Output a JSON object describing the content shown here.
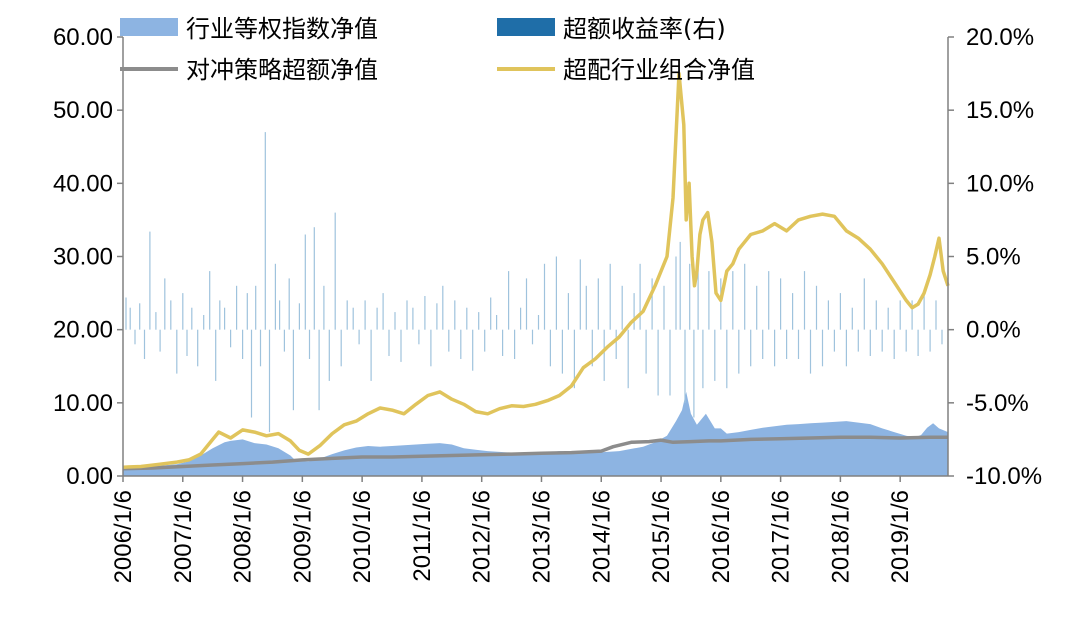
{
  "chart_data": {
    "type": "line",
    "title": "",
    "xlabel": "",
    "ylabel": "",
    "y_left": {
      "range": [
        0,
        60
      ],
      "ticks": [
        0,
        10,
        20,
        30,
        40,
        50,
        60
      ],
      "tick_labels": [
        "0.00",
        "10.00",
        "20.00",
        "30.00",
        "40.00",
        "50.00",
        "60.00"
      ]
    },
    "y_right": {
      "range": [
        -10,
        20
      ],
      "ticks": [
        -10,
        -5,
        0,
        5,
        10,
        15,
        20
      ],
      "tick_labels": [
        "-10.0%",
        "-5.0%",
        "0.0%",
        "5.0%",
        "10.0%",
        "15.0%",
        "20.0%"
      ]
    },
    "x_range": [
      2006.0,
      2019.8
    ],
    "x_ticks": [
      2006,
      2007,
      2008,
      2009,
      2010,
      2011,
      2012,
      2013,
      2014,
      2015,
      2016,
      2017,
      2018,
      2019
    ],
    "x_tick_labels": [
      "2006/1/6",
      "2007/1/6",
      "2008/1/6",
      "2009/1/6",
      "2010/1/6",
      "2011/1/6",
      "2012/1/6",
      "2013/1/6",
      "2014/1/6",
      "2015/1/6",
      "2016/1/6",
      "2017/1/6",
      "2018/1/6",
      "2019/1/6"
    ],
    "grid": false,
    "legend_position": "top",
    "series": [
      {
        "name": "行业等权指数净值",
        "type": "area",
        "axis": "left",
        "color": "#8db4e2",
        "x": [
          2006.0,
          2006.3,
          2006.6,
          2006.9,
          2007.1,
          2007.3,
          2007.5,
          2007.7,
          2007.8,
          2008.0,
          2008.2,
          2008.4,
          2008.6,
          2008.8,
          2008.9,
          2009.1,
          2009.3,
          2009.5,
          2009.7,
          2009.9,
          2010.1,
          2010.3,
          2010.5,
          2010.7,
          2010.9,
          2011.1,
          2011.3,
          2011.5,
          2011.7,
          2011.9,
          2012.1,
          2012.3,
          2012.5,
          2012.7,
          2012.9,
          2013.1,
          2013.3,
          2013.5,
          2013.7,
          2013.9,
          2014.1,
          2014.3,
          2014.5,
          2014.7,
          2014.9,
          2015.1,
          2015.25,
          2015.35,
          2015.42,
          2015.5,
          2015.6,
          2015.75,
          2015.9,
          2016.0,
          2016.1,
          2016.3,
          2016.5,
          2016.7,
          2016.9,
          2017.1,
          2017.3,
          2017.5,
          2017.7,
          2017.9,
          2018.1,
          2018.3,
          2018.5,
          2018.7,
          2018.9,
          2019.1,
          2019.25,
          2019.35,
          2019.45,
          2019.55,
          2019.65,
          2019.8
        ],
        "values": [
          1.0,
          1.2,
          1.4,
          1.6,
          2.0,
          2.8,
          3.8,
          4.6,
          4.8,
          5.0,
          4.5,
          4.3,
          3.8,
          2.8,
          2.0,
          2.0,
          2.4,
          3.0,
          3.5,
          3.9,
          4.1,
          4.0,
          4.1,
          4.2,
          4.3,
          4.4,
          4.5,
          4.3,
          3.8,
          3.6,
          3.4,
          3.3,
          3.2,
          3.1,
          3.0,
          3.2,
          3.4,
          3.3,
          3.1,
          3.2,
          3.3,
          3.4,
          3.7,
          4.0,
          4.6,
          5.5,
          7.5,
          9.0,
          11.5,
          8.5,
          7.0,
          8.5,
          6.5,
          6.5,
          5.8,
          6.0,
          6.3,
          6.6,
          6.8,
          7.0,
          7.1,
          7.2,
          7.3,
          7.4,
          7.5,
          7.3,
          7.1,
          6.5,
          6.0,
          5.5,
          5.3,
          5.6,
          6.6,
          7.2,
          6.5,
          6.0
        ]
      },
      {
        "name": "超额收益率(右)",
        "type": "bar",
        "axis": "right",
        "color": "#1f6ea8",
        "bar_color": "#9fc3dd",
        "x": [
          2006.05,
          2006.12,
          2006.2,
          2006.28,
          2006.36,
          2006.45,
          2006.55,
          2006.62,
          2006.7,
          2006.8,
          2006.9,
          2007.0,
          2007.07,
          2007.15,
          2007.25,
          2007.35,
          2007.45,
          2007.55,
          2007.62,
          2007.7,
          2007.8,
          2007.9,
          2008.0,
          2008.08,
          2008.15,
          2008.22,
          2008.3,
          2008.38,
          2008.45,
          2008.55,
          2008.62,
          2008.7,
          2008.78,
          2008.85,
          2008.95,
          2009.05,
          2009.12,
          2009.2,
          2009.28,
          2009.36,
          2009.45,
          2009.55,
          2009.65,
          2009.75,
          2009.85,
          2009.95,
          2010.05,
          2010.15,
          2010.25,
          2010.35,
          2010.45,
          2010.55,
          2010.65,
          2010.75,
          2010.85,
          2010.95,
          2011.05,
          2011.15,
          2011.25,
          2011.35,
          2011.45,
          2011.55,
          2011.65,
          2011.75,
          2011.85,
          2011.95,
          2012.05,
          2012.15,
          2012.25,
          2012.35,
          2012.45,
          2012.55,
          2012.65,
          2012.75,
          2012.85,
          2012.95,
          2013.05,
          2013.15,
          2013.25,
          2013.35,
          2013.45,
          2013.55,
          2013.65,
          2013.75,
          2013.85,
          2013.95,
          2014.05,
          2014.15,
          2014.25,
          2014.35,
          2014.45,
          2014.55,
          2014.65,
          2014.75,
          2014.85,
          2014.95,
          2015.05,
          2015.15,
          2015.25,
          2015.32,
          2015.4,
          2015.48,
          2015.55,
          2015.62,
          2015.7,
          2015.8,
          2015.9,
          2016.0,
          2016.1,
          2016.2,
          2016.3,
          2016.4,
          2016.5,
          2016.6,
          2016.7,
          2016.8,
          2016.9,
          2017.0,
          2017.1,
          2017.2,
          2017.3,
          2017.4,
          2017.5,
          2017.6,
          2017.7,
          2017.8,
          2017.9,
          2018.0,
          2018.1,
          2018.2,
          2018.3,
          2018.4,
          2018.5,
          2018.6,
          2018.7,
          2018.8,
          2018.9,
          2019.0,
          2019.1,
          2019.2,
          2019.3,
          2019.4,
          2019.5,
          2019.6,
          2019.7
        ],
        "values": [
          2.2,
          1.5,
          -1.0,
          1.8,
          -2.0,
          6.7,
          1.2,
          -1.5,
          3.5,
          2.0,
          -3.0,
          2.5,
          -1.8,
          1.5,
          -2.5,
          1.0,
          4.0,
          -3.5,
          2.0,
          1.5,
          -1.2,
          3.0,
          -2.0,
          2.5,
          -6.0,
          3.0,
          -2.5,
          13.5,
          -7.0,
          4.5,
          2.0,
          -1.5,
          3.5,
          -5.5,
          1.8,
          6.5,
          -2.0,
          7.0,
          -5.5,
          3.0,
          -3.5,
          8.0,
          -2.5,
          2.0,
          1.5,
          -1.0,
          2.0,
          -3.5,
          1.5,
          2.5,
          -1.8,
          1.2,
          -2.2,
          2.0,
          1.5,
          -1.0,
          2.3,
          -2.5,
          1.8,
          3.0,
          -1.5,
          2.0,
          -2.0,
          1.5,
          -2.8,
          1.2,
          -1.5,
          2.2,
          1.0,
          -1.8,
          4.0,
          -2.0,
          1.5,
          3.5,
          -1.0,
          1.0,
          4.5,
          -2.5,
          5.0,
          -3.0,
          2.5,
          -4.0,
          4.8,
          3.0,
          -2.5,
          3.5,
          -3.5,
          4.5,
          -2.0,
          3.0,
          -4.0,
          2.5,
          4.5,
          -3.0,
          3.5,
          -4.5,
          3.0,
          -4.5,
          5.0,
          6.0,
          -5.0,
          4.5,
          -6.0,
          5.5,
          -4.0,
          4.0,
          -3.5,
          3.5,
          -4.0,
          4.0,
          -3.0,
          4.5,
          -2.5,
          3.0,
          -2.0,
          4.0,
          -2.5,
          3.5,
          -2.0,
          2.5,
          -2.0,
          4.0,
          -3.0,
          3.0,
          -2.5,
          2.0,
          -1.5,
          2.5,
          -2.5,
          1.5,
          -1.5,
          3.5,
          -1.8,
          2.0,
          -1.5,
          1.5,
          -2.0,
          2.0,
          -1.5,
          2.0,
          -1.8,
          2.5,
          -1.5,
          2.0,
          -1.0
        ],
        "note": ""
      },
      {
        "name": "对冲策略超额净值",
        "type": "line",
        "axis": "left",
        "color": "#8c8c8c",
        "x": [
          2006.0,
          2006.5,
          2007.0,
          2007.5,
          2008.0,
          2008.5,
          2009.0,
          2009.5,
          2010.0,
          2010.5,
          2011.0,
          2011.5,
          2012.0,
          2012.5,
          2013.0,
          2013.5,
          2014.0,
          2014.2,
          2014.5,
          2014.8,
          2015.0,
          2015.2,
          2015.5,
          2015.8,
          2016.0,
          2016.5,
          2017.0,
          2017.5,
          2018.0,
          2018.5,
          2019.0,
          2019.5,
          2019.8
        ],
        "values": [
          1.0,
          1.1,
          1.3,
          1.5,
          1.7,
          1.9,
          2.2,
          2.4,
          2.6,
          2.6,
          2.7,
          2.8,
          2.9,
          3.0,
          3.1,
          3.2,
          3.4,
          4.0,
          4.6,
          4.7,
          4.9,
          4.6,
          4.7,
          4.8,
          4.8,
          5.0,
          5.1,
          5.2,
          5.3,
          5.3,
          5.2,
          5.3,
          5.3
        ]
      },
      {
        "name": "超配行业组合净值",
        "type": "line",
        "axis": "left",
        "color": "#e0c45c",
        "x": [
          2006.0,
          2006.3,
          2006.6,
          2006.9,
          2007.1,
          2007.3,
          2007.5,
          2007.6,
          2007.8,
          2008.0,
          2008.2,
          2008.4,
          2008.6,
          2008.8,
          2008.95,
          2009.1,
          2009.3,
          2009.5,
          2009.7,
          2009.9,
          2010.1,
          2010.3,
          2010.5,
          2010.7,
          2010.9,
          2011.1,
          2011.3,
          2011.5,
          2011.7,
          2011.9,
          2012.1,
          2012.3,
          2012.5,
          2012.7,
          2012.9,
          2013.1,
          2013.3,
          2013.5,
          2013.7,
          2013.9,
          2014.1,
          2014.3,
          2014.5,
          2014.7,
          2014.9,
          2015.1,
          2015.2,
          2015.3,
          2015.38,
          2015.42,
          2015.47,
          2015.52,
          2015.56,
          2015.6,
          2015.65,
          2015.7,
          2015.78,
          2015.85,
          2015.92,
          2016.0,
          2016.05,
          2016.1,
          2016.2,
          2016.3,
          2016.5,
          2016.7,
          2016.9,
          2017.1,
          2017.3,
          2017.5,
          2017.7,
          2017.9,
          2018.1,
          2018.3,
          2018.5,
          2018.7,
          2018.9,
          2019.1,
          2019.2,
          2019.3,
          2019.4,
          2019.5,
          2019.58,
          2019.65,
          2019.72,
          2019.8
        ],
        "values": [
          1.2,
          1.3,
          1.6,
          1.9,
          2.2,
          3.0,
          5.0,
          6.0,
          5.2,
          6.3,
          6.0,
          5.5,
          5.8,
          4.8,
          3.5,
          3.0,
          4.2,
          5.8,
          7.0,
          7.5,
          8.5,
          9.3,
          9.0,
          8.5,
          9.8,
          11.0,
          11.5,
          10.5,
          9.8,
          8.8,
          8.5,
          9.2,
          9.6,
          9.5,
          9.8,
          10.3,
          11.0,
          12.3,
          14.8,
          16.0,
          17.6,
          19.0,
          21.0,
          22.5,
          26.0,
          30.0,
          38.0,
          55.0,
          48.0,
          35.0,
          40.0,
          30.0,
          26.0,
          28.0,
          33.0,
          35.0,
          36.0,
          32.0,
          25.0,
          24.0,
          26.0,
          28.0,
          29.0,
          31.0,
          33.0,
          33.5,
          34.5,
          33.5,
          35.0,
          35.5,
          35.8,
          35.5,
          33.5,
          32.5,
          31.0,
          29.0,
          26.5,
          24.0,
          23.0,
          23.5,
          25.0,
          27.5,
          30.0,
          32.5,
          28.0,
          26.0
        ]
      }
    ]
  },
  "legend": [
    {
      "label": "行业等权指数净值",
      "symbol": "area",
      "color": "#8db4e2"
    },
    {
      "label": "超额收益率(右)",
      "symbol": "bar",
      "color": "#1f6ea8"
    },
    {
      "label": "对冲策略超额净值",
      "symbol": "line",
      "color": "#8c8c8c"
    },
    {
      "label": "超配行业组合净值",
      "symbol": "line",
      "color": "#e0c45c"
    }
  ]
}
